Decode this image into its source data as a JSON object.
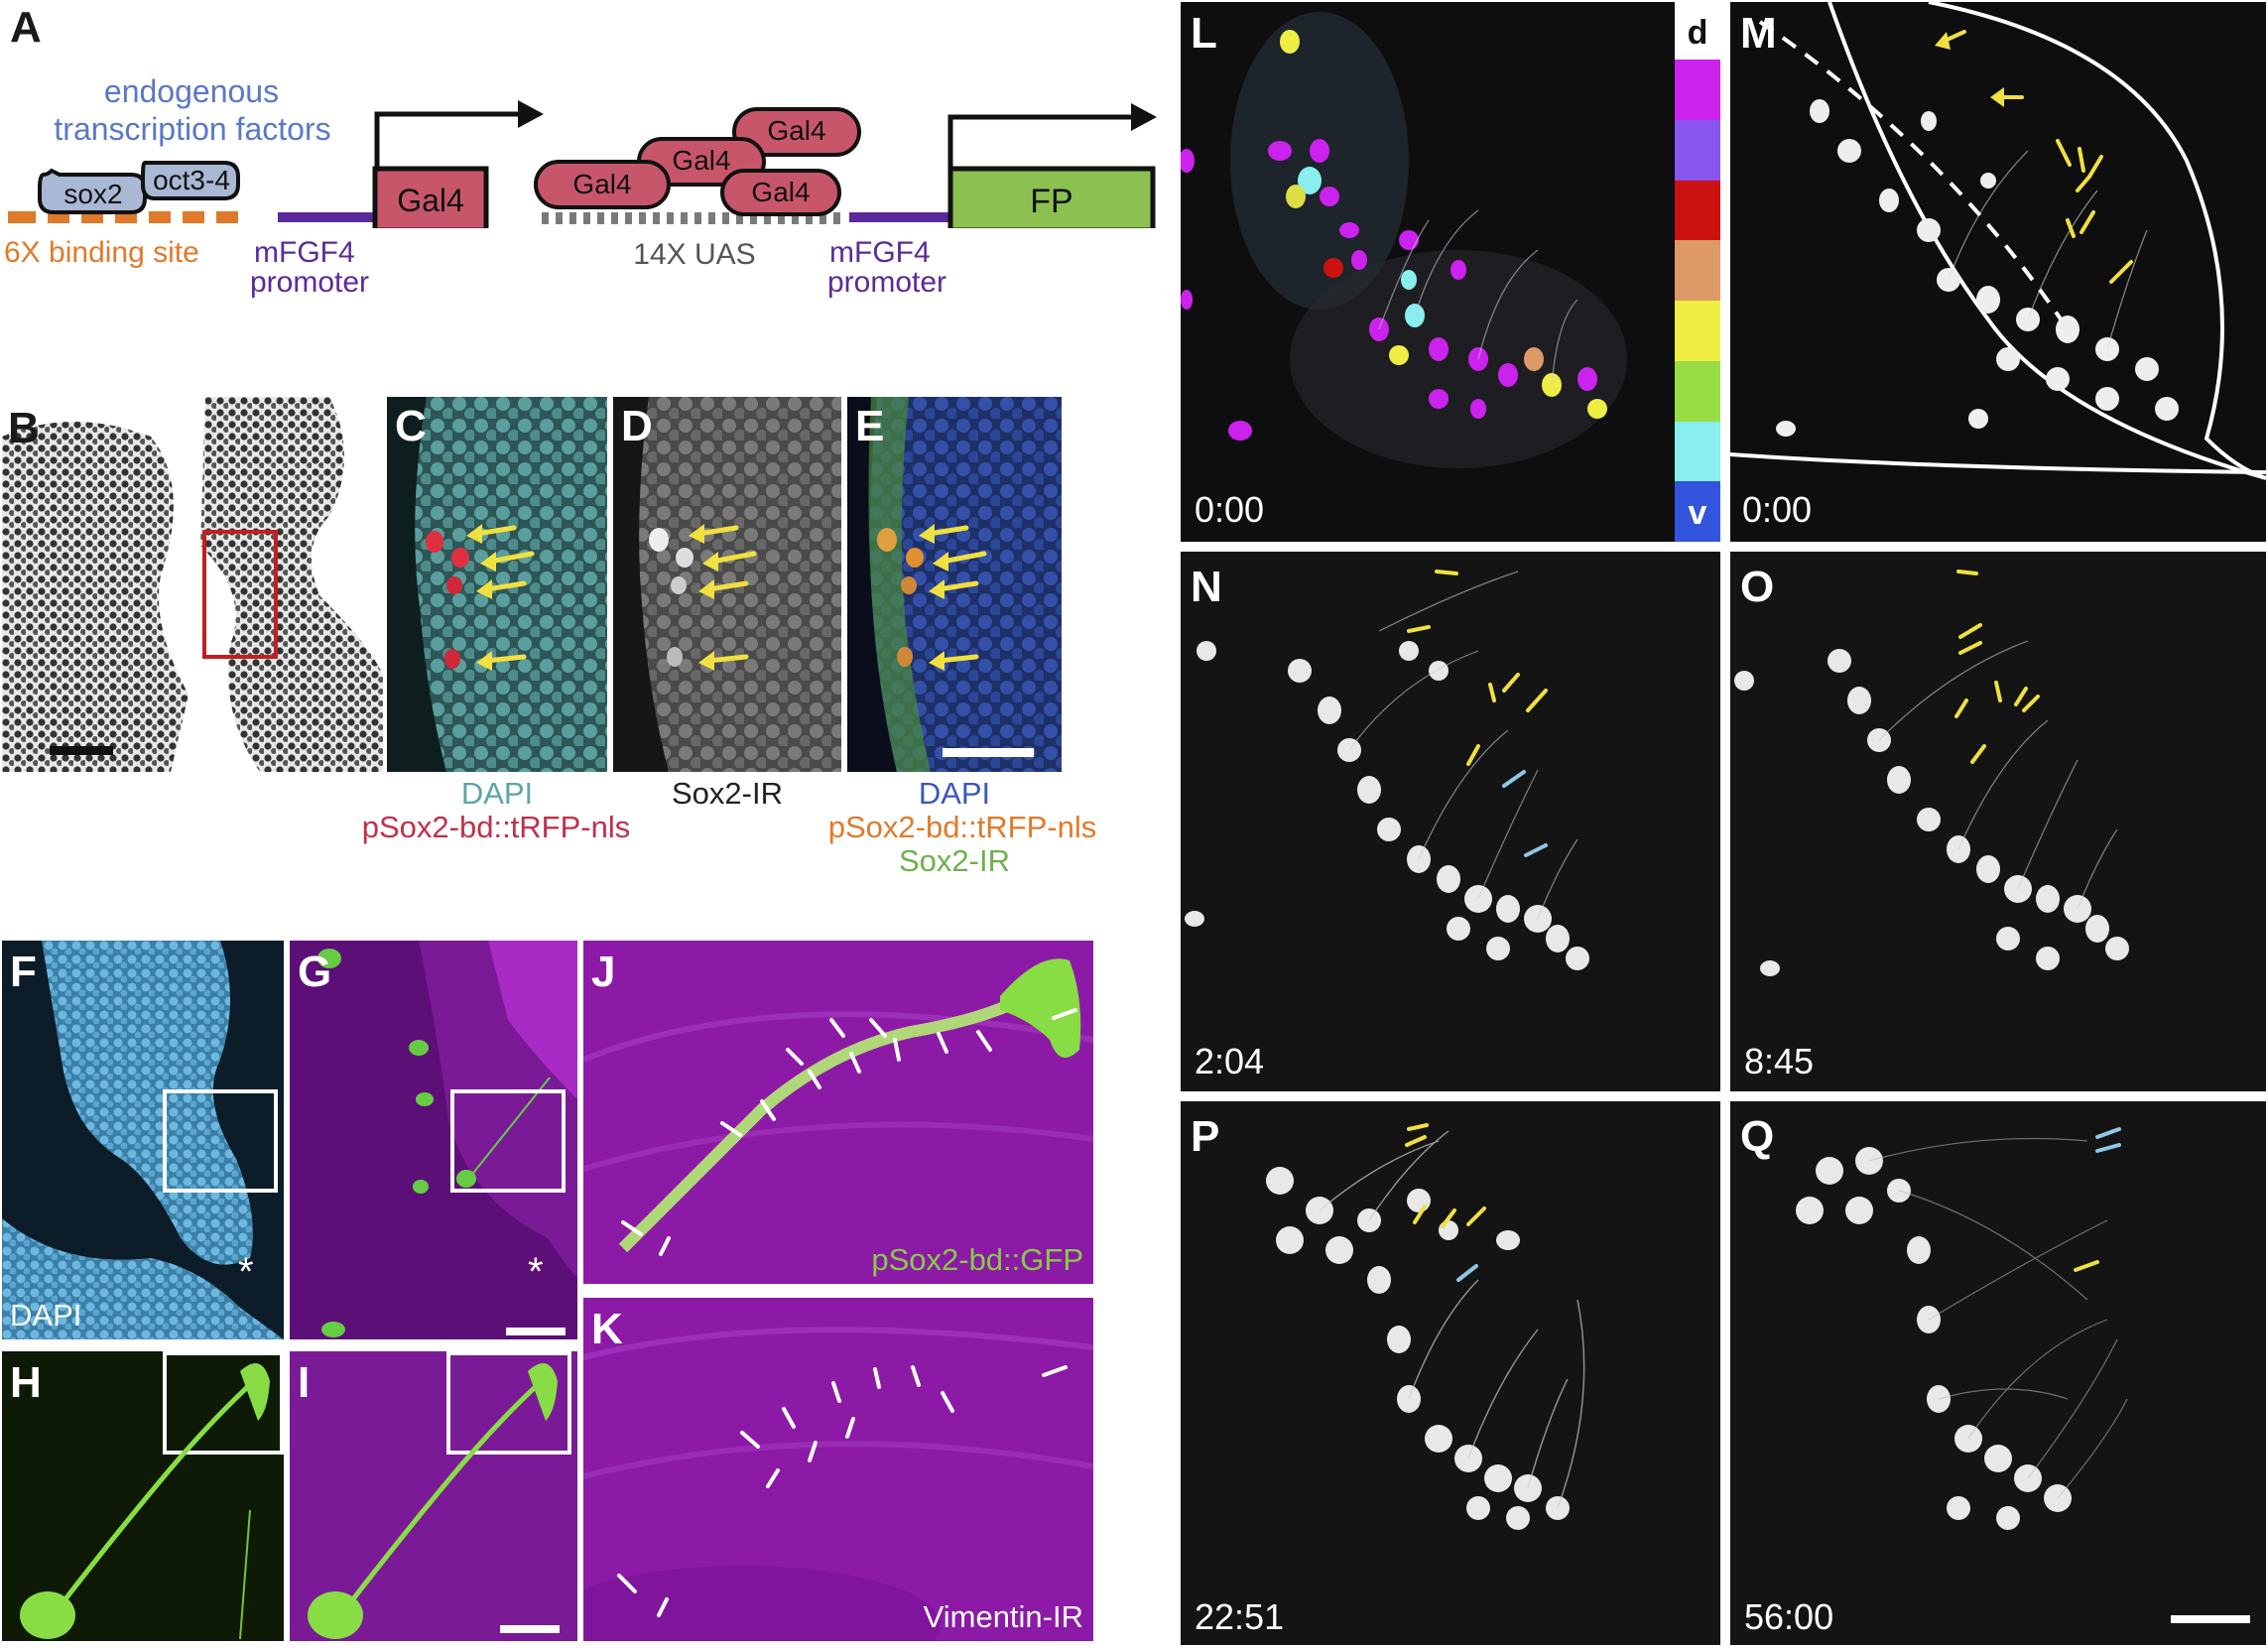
{
  "colors": {
    "orange": "#e07a2a",
    "purple": "#5b2a9a",
    "blue_text": "#5a78c8",
    "gal4_fill": "#c8566a",
    "fp_fill": "#8cc152",
    "tf_fill": "#a9b8d4",
    "yellow_arrow": "#f0e040",
    "cyan_arrow": "#8ec8e8",
    "dapi_cyan": "#5aa6a6",
    "red_cap": "#c0304a",
    "green_cap": "#6db04a",
    "magenta_bg": "#8c1aa6"
  },
  "panelA": {
    "label": "A",
    "tf_title_line1": "endogenous",
    "tf_title_line2": "transcription factors",
    "sox2": "sox2",
    "oct": "oct3-4",
    "binding_site": "6X binding site",
    "promoter1_line1": "mFGF4",
    "promoter1_line2": "promoter",
    "gal4_box": "Gal4",
    "gal4_bubbles": [
      "Gal4",
      "Gal4",
      "Gal4",
      "Gal4"
    ],
    "uas": "14X UAS",
    "promoter2_line1": "mFGF4",
    "promoter2_line2": "promoter",
    "fp": "FP"
  },
  "panels": {
    "B": "B",
    "C": "C",
    "D": "D",
    "E": "E",
    "F": "F",
    "G": "G",
    "H": "H",
    "I": "I",
    "J": "J",
    "K": "K",
    "L": "L",
    "M": "M",
    "N": "N",
    "O": "O",
    "P": "P",
    "Q": "Q"
  },
  "captions": {
    "C_line1": "DAPI",
    "C_line2": "pSox2-bd::tRFP-nls",
    "D_line1": "Sox2-IR",
    "E_line1": "DAPI",
    "E_line2": "pSox2-bd::tRFP-nls",
    "E_line3": "Sox2-IR",
    "F_inner": "DAPI",
    "J_inner": "pSox2-bd::GFP",
    "K_inner": "Vimentin-IR",
    "asterisk": "*"
  },
  "colorbar": {
    "top": "d",
    "bottom": "v",
    "colors": [
      "#cc22ee",
      "#8855ee",
      "#cc1111",
      "#dd9966",
      "#eeee44",
      "#99dd44",
      "#88eeee",
      "#3355dd"
    ]
  },
  "timestamps": {
    "L": "0:00",
    "M": "0:00",
    "N": "2:04",
    "O": "8:45",
    "P": "22:51",
    "Q": "56:00"
  }
}
